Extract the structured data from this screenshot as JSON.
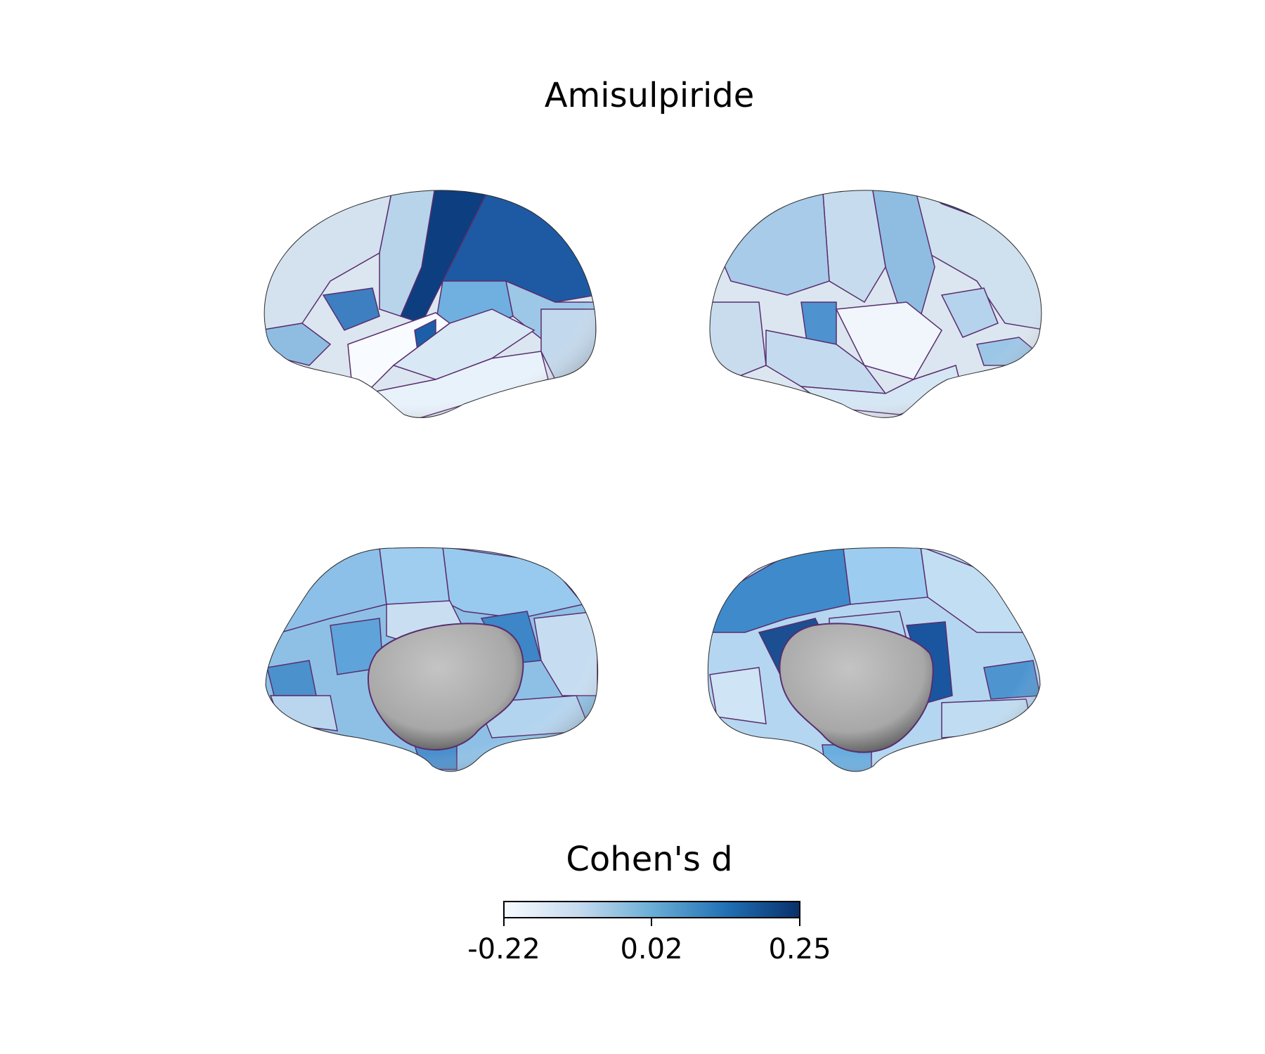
{
  "title": "Amisulpiride",
  "colorbar": {
    "label": "Cohen's d",
    "min": -0.22,
    "mid": 0.02,
    "max": 0.25,
    "ticks": [
      "-0.22",
      "0.02",
      "0.25"
    ],
    "colormap": "Blues",
    "colors": [
      "#f7fbff",
      "#c6dbef",
      "#6baed6",
      "#2171b5",
      "#08306b"
    ]
  },
  "views": [
    "left-lateral",
    "right-lateral",
    "left-medial",
    "right-medial"
  ],
  "medial_wall_color": "#a9a9a9",
  "border_color": "#5a2d6e"
}
